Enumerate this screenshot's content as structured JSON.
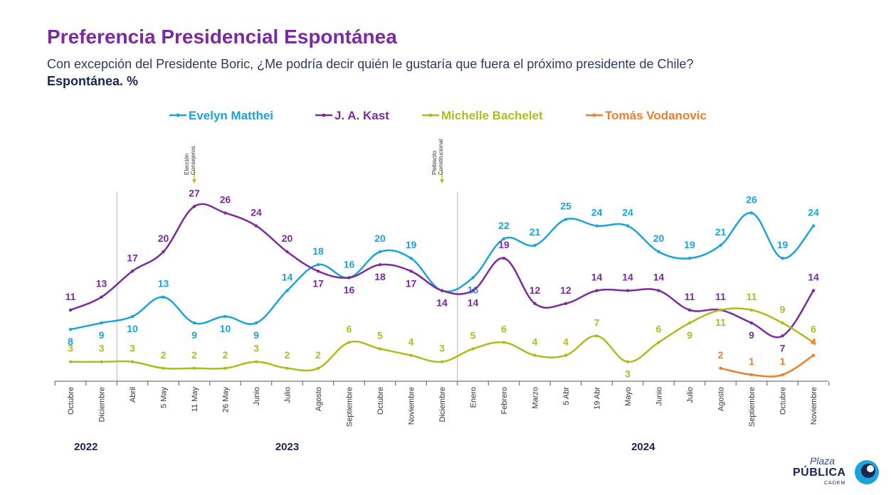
{
  "header": {
    "title": "Preferencia Presidencial Espontánea",
    "subtitle": "Con excepción del Presidente Boric, ¿Me podría decir quién le gustaría que fuera el próximo presidente de Chile?",
    "unit": "Espontánea. %"
  },
  "logo": {
    "line1": "Plaza",
    "line2": "PÚBLICA",
    "line3": "CADEM"
  },
  "chart_data": {
    "type": "line",
    "title": "Preferencia Presidencial Espontánea",
    "xlabel": "",
    "ylabel": "",
    "ylim": [
      0,
      30
    ],
    "grid": false,
    "legend_position": "top",
    "categories": [
      "Octubre",
      "Diciembre",
      "Abril",
      "5 May",
      "11 May",
      "26 May",
      "Junio",
      "Julio",
      "Agosto",
      "Septiembre",
      "Octubre",
      "Noviembre",
      "Diciembre",
      "Enero",
      "Febrero",
      "Marzo",
      "5 Abr",
      "19 Abr",
      "Mayo",
      "Junio",
      "Julio",
      "Agosto",
      "Septiembre",
      "Octubre",
      "Noviembre"
    ],
    "years": [
      {
        "label": "2022",
        "start": 0,
        "end": 1
      },
      {
        "label": "2023",
        "start": 2,
        "end": 12
      },
      {
        "label": "2024",
        "start": 13,
        "end": 24
      }
    ],
    "series": [
      {
        "name": "Evelyn Matthei",
        "color": "#1aa3dd",
        "values": [
          8,
          9,
          10,
          13,
          9,
          10,
          9,
          14,
          18,
          16,
          20,
          19,
          14,
          16,
          22,
          21,
          25,
          24,
          24,
          20,
          19,
          21,
          26,
          19,
          24
        ]
      },
      {
        "name": "J. A. Kast",
        "color": "#7b2aa0",
        "values": [
          11,
          13,
          17,
          20,
          27,
          26,
          24,
          20,
          17,
          16,
          18,
          17,
          14,
          14,
          19,
          12,
          12,
          14,
          14,
          14,
          11,
          11,
          9,
          7,
          14
        ]
      },
      {
        "name": "Michelle Bachelet",
        "color": "#aebd1a",
        "values": [
          3,
          3,
          3,
          2,
          2,
          2,
          3,
          2,
          2,
          6,
          5,
          4,
          3,
          5,
          6,
          4,
          4,
          7,
          3,
          6,
          9,
          11,
          11,
          9,
          6
        ]
      },
      {
        "name": "Tomás Vodanovic",
        "color": "#ef7d2c",
        "values": [
          null,
          null,
          null,
          null,
          null,
          null,
          null,
          null,
          null,
          null,
          null,
          null,
          null,
          null,
          null,
          null,
          null,
          null,
          null,
          null,
          null,
          2,
          1,
          1,
          4
        ]
      }
    ],
    "annotations": [
      {
        "lines": [
          "Elección",
          "Consejeros"
        ],
        "at_index": 4
      },
      {
        "lines": [
          "Plebiscito",
          "Constitucional"
        ],
        "at_index": 12
      }
    ]
  }
}
